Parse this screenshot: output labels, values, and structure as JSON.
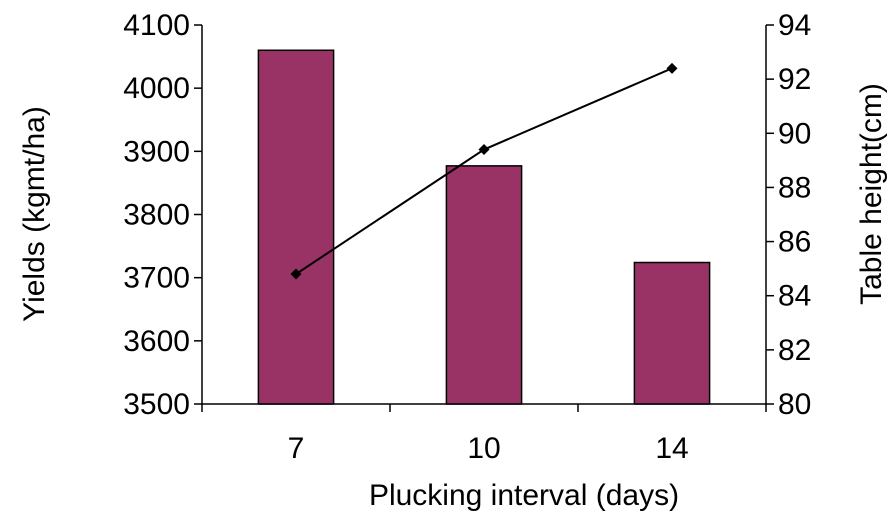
{
  "chart_data": {
    "type": "bar+line",
    "title": "",
    "xlabel": "Plucking interval (days)",
    "categories": [
      "7",
      "10",
      "14"
    ],
    "y_left": {
      "label": "Yields (kgmt/ha)",
      "min": 3500,
      "max": 4100,
      "step": 100,
      "ticks": [
        "3500",
        "3600",
        "3700",
        "3800",
        "3900",
        "4000",
        "4100"
      ]
    },
    "y_right": {
      "label": "Table height(cm)",
      "min": 80,
      "max": 94,
      "step": 2,
      "ticks": [
        "80",
        "82",
        "84",
        "86",
        "88",
        "90",
        "92",
        "94"
      ]
    },
    "series": [
      {
        "type": "bar",
        "axis": "left",
        "values": [
          4060,
          3877,
          3724
        ],
        "color": "#993366"
      },
      {
        "type": "line",
        "axis": "right",
        "values": [
          84.8,
          89.4,
          92.4
        ],
        "color": "#000000",
        "marker": "diamond"
      }
    ],
    "grid": false,
    "legend": "none"
  }
}
